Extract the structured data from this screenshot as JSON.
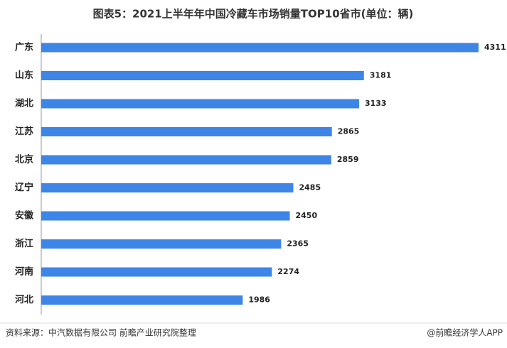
{
  "chart_data": {
    "type": "bar",
    "orientation": "horizontal",
    "title": "图表5：2021上半年年中国冷藏车市场销量TOP10省市(单位：辆)",
    "categories": [
      "广东",
      "山东",
      "湖北",
      "江苏",
      "北京",
      "辽宁",
      "安徽",
      "浙江",
      "河南",
      "河北"
    ],
    "values": [
      4311,
      3181,
      3133,
      2865,
      2859,
      2485,
      2450,
      2365,
      2274,
      1986
    ],
    "color": "#3d85e6",
    "source": "资料来源：中汽数据有限公司 前瞻产业研究院整理",
    "credit": "@前瞻经济学人APP"
  }
}
